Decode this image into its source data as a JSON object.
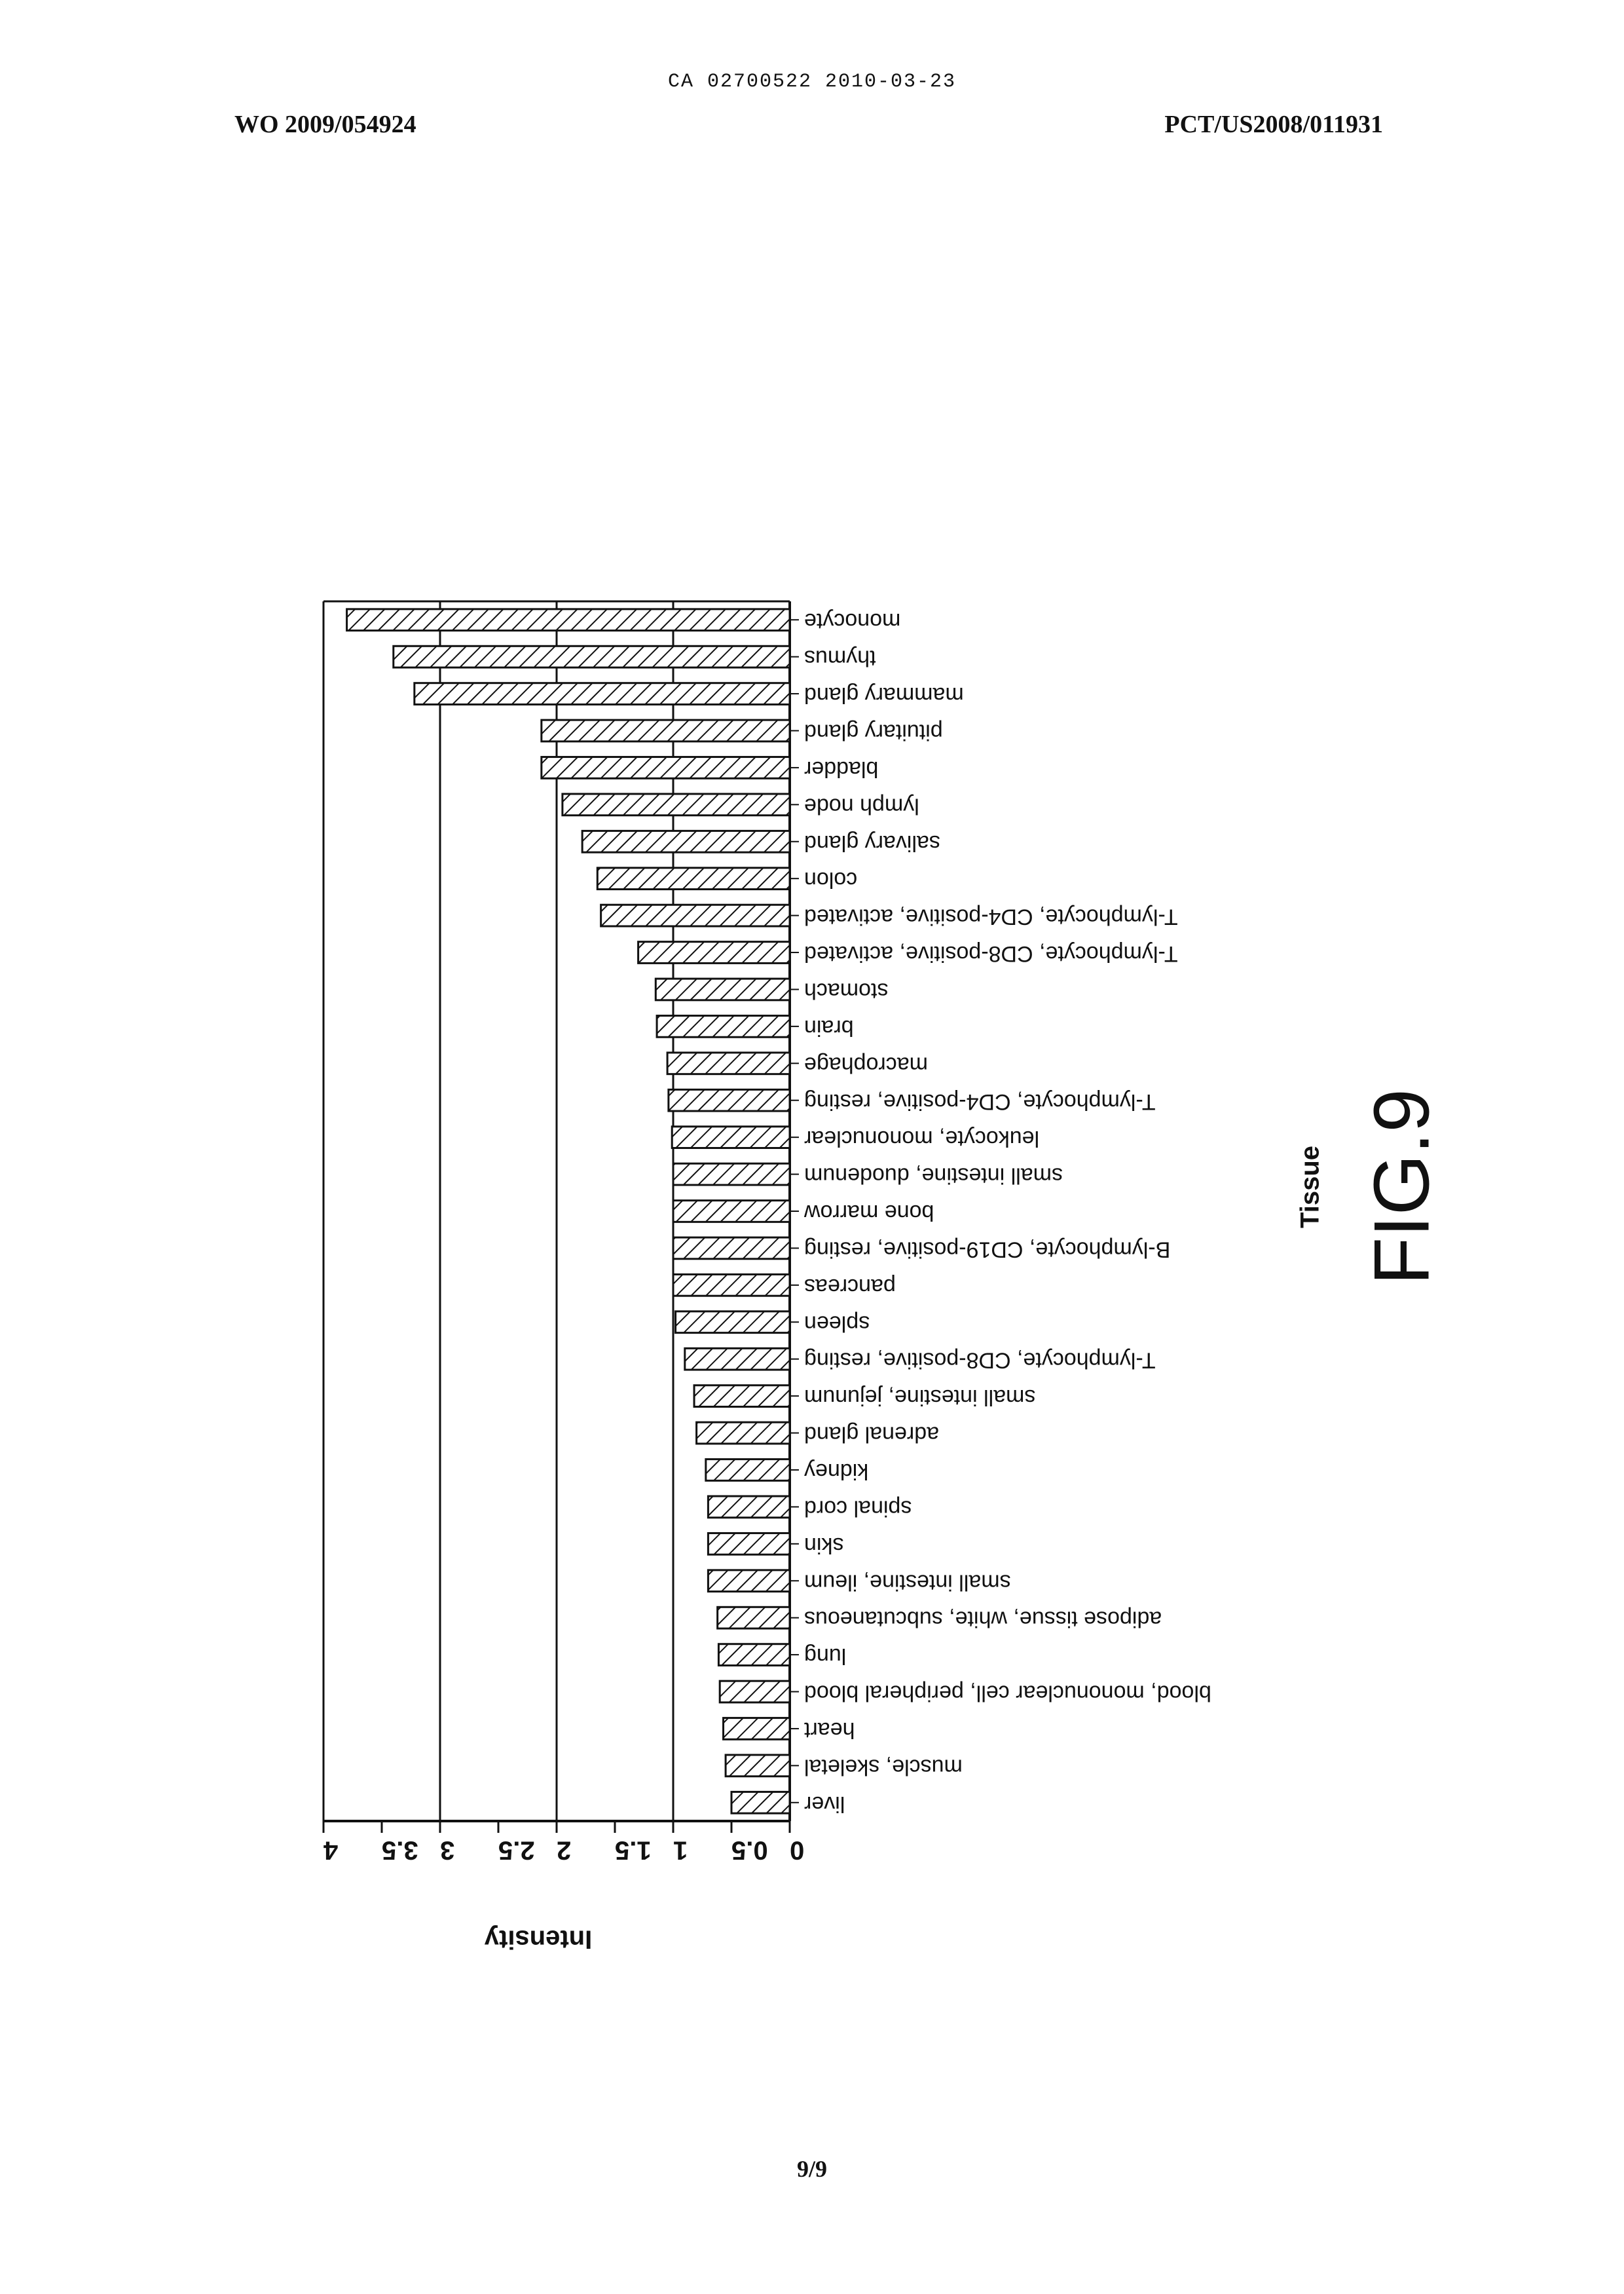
{
  "header": {
    "doc_code": "CA 02700522 2010-03-23",
    "publication_number": "WO 2009/054924",
    "application_number": "PCT/US2008/011931"
  },
  "footer": {
    "page": "9/9"
  },
  "figure": {
    "label": "FIG.9"
  },
  "chart_data": {
    "type": "bar",
    "orientation": "horizontal (page printed rotated 180 degrees)",
    "xlabel": "Tissue",
    "ylabel": "Intensity",
    "ylim": [
      0,
      4
    ],
    "ticks": [
      "0",
      "0.5",
      "1",
      "1.5",
      "2",
      "2.5",
      "3",
      "3.5",
      "4"
    ],
    "grid": "major gridlines at whole numbers",
    "fill_pattern": "diagonal hatch",
    "categories": [
      "liver",
      "muscle, skeletal",
      "heart",
      "blood, mononuclear cell, peripheral blood",
      "lung",
      "adipose tissue, white, subcutaneous",
      "small intestine, ileum",
      "skin",
      "spinal cord",
      "kidney",
      "adrenal gland",
      "small intestine, jejunum",
      "T-lymphocyte, CD8-positive, resting",
      "spleen",
      "pancreas",
      "B-lymphocyte, CD19-positive, resting",
      "bone marrow",
      "small intestine, duodenum",
      "leukocyte, mononuclear",
      "T-lymphocyte, CD4-positive, resting",
      "macrophage",
      "brain",
      "stomach",
      "T-lymphocyte, CD8-positive, activated",
      "T-lymphocyte, CD4-positive, activated",
      "colon",
      "salivary gland",
      "lymph node",
      "bladder",
      "pituitary gland",
      "mammary gland",
      "thymus",
      "monocyte"
    ],
    "values": [
      0.5,
      0.55,
      0.57,
      0.6,
      0.61,
      0.62,
      0.7,
      0.7,
      0.7,
      0.72,
      0.8,
      0.82,
      0.9,
      0.98,
      1.0,
      1.0,
      1.0,
      1.0,
      1.01,
      1.04,
      1.05,
      1.14,
      1.15,
      1.3,
      1.62,
      1.65,
      1.78,
      1.95,
      2.13,
      2.13,
      3.22,
      3.4,
      3.8
    ]
  }
}
